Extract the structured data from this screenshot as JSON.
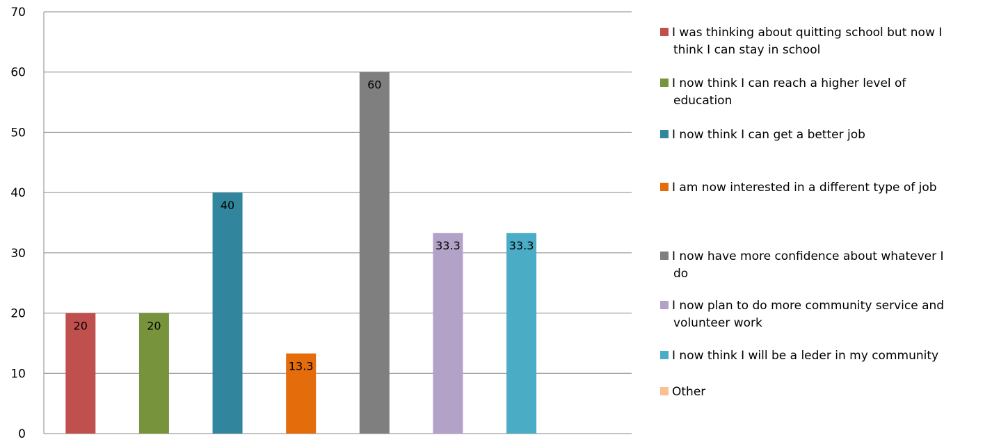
{
  "chart_data": {
    "type": "bar",
    "categories": [
      "I was thinking about quitting school but now I think I can stay in school",
      "I now think I can reach a higher level of education",
      "I now think I can get a better job",
      "I am now interested in a different type of job",
      "I now have more confidence about whatever I do",
      "I now plan to do more community service and volunteer work",
      "I now think I will be a leder in my community",
      "Other"
    ],
    "values": [
      20,
      20,
      40,
      13.3,
      60,
      33.3,
      33.3,
      0
    ],
    "data_labels": [
      "20",
      "20",
      "40",
      "13.3",
      "60",
      "33.3",
      "33.3",
      ""
    ],
    "colors": [
      "#C0504D",
      "#77933C",
      "#31859C",
      "#E46C0A",
      "#7F7F7F",
      "#B3A2C7",
      "#4BACC6",
      "#FAC090"
    ],
    "title": "",
    "xlabel": "",
    "ylabel": "",
    "ylim": [
      0,
      70
    ],
    "yticks": [
      "0",
      "10",
      "20",
      "30",
      "40",
      "50",
      "60",
      "70"
    ],
    "grid": true,
    "legend_position": "right",
    "legend": [
      {
        "lines": [
          "I was thinking about quitting school but now I",
          "think I can stay in school"
        ]
      },
      {
        "lines": [
          "I now think I can reach a higher level of",
          "education"
        ]
      },
      {
        "lines": [
          "I now think I can get a better job"
        ]
      },
      {
        "lines": [
          "I am now interested in a different type of job"
        ]
      },
      {
        "lines": [
          "I now have more confidence about whatever I",
          "do"
        ]
      },
      {
        "lines": [
          "I now plan to do more community service and",
          "volunteer work"
        ]
      },
      {
        "lines": [
          "I now think I will be a leder in my community"
        ]
      },
      {
        "lines": [
          "Other"
        ]
      }
    ]
  }
}
